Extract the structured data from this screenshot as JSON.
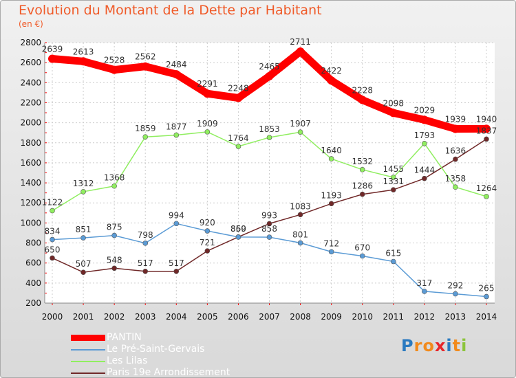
{
  "title": "Evolution du Montant de la Dette par Habitant",
  "subtitle": "(en €)",
  "logo": {
    "text": "Proxiti",
    "colors": [
      "#2a7ac0",
      "#f28a1b",
      "#f28a1b",
      "#e8262a",
      "#2a7ac0",
      "#f28a1b",
      "#8cc43c"
    ]
  },
  "chart_data": {
    "type": "line",
    "title": "Evolution du Montant de la Dette par Habitant",
    "subtitle": "(en €)",
    "x": [
      "2000",
      "2001",
      "2002",
      "2003",
      "2004",
      "2005",
      "2006",
      "2007",
      "2008",
      "2009",
      "2010",
      "2011",
      "2012",
      "2013",
      "2014"
    ],
    "ylim": [
      200,
      2800
    ],
    "yticks": [
      200,
      400,
      600,
      800,
      1000,
      1200,
      1400,
      1600,
      1800,
      2000,
      2200,
      2400,
      2600,
      2800
    ],
    "grid": true,
    "legend_position": "bottom-left",
    "series": [
      {
        "name": "PANTIN",
        "color": "#ff0000",
        "values": [
          2639,
          2613,
          2528,
          2562,
          2484,
          2291,
          2248,
          2465,
          2711,
          2422,
          2228,
          2098,
          2029,
          1939,
          1940
        ]
      },
      {
        "name": "Le Pré-Saint-Gervais",
        "color": "#5b9bd5",
        "values": [
          834,
          851,
          875,
          798,
          994,
          920,
          859,
          858,
          801,
          712,
          670,
          615,
          317,
          292,
          265
        ]
      },
      {
        "name": "Les Lilas",
        "color": "#90ee60",
        "values": [
          1122,
          1312,
          1368,
          1859,
          1877,
          1909,
          1764,
          1853,
          1907,
          1640,
          1532,
          1455,
          1793,
          1358,
          1264
        ]
      },
      {
        "name": "Paris 19e  Arrondissement",
        "color": "#702828",
        "values": [
          650,
          507,
          548,
          517,
          517,
          721,
          860,
          993,
          1083,
          1193,
          1286,
          1331,
          1444,
          1636,
          1837
        ]
      }
    ],
    "data_labels": [
      [
        "2639",
        "2613",
        "2528",
        "2562",
        "2484",
        "2291",
        "2248",
        "2465",
        "2711",
        "2422",
        "2228",
        "2098",
        "2029",
        "1939",
        "1940"
      ],
      [
        "834",
        "851",
        "875",
        "798",
        "994",
        "920",
        "859",
        "858",
        "801",
        "712",
        "670",
        "615",
        "317",
        "292",
        "265"
      ],
      [
        "1122",
        "1312",
        "1368",
        "1859",
        "1877",
        "1909",
        "1764",
        "1853",
        "1907",
        "1640",
        "1532",
        "1455",
        "1793",
        "1358",
        "1264"
      ],
      [
        "650",
        "507",
        "548",
        "517",
        "517",
        "721",
        "860",
        "993",
        "1083",
        "1193",
        "1286",
        "1331",
        "1444",
        "1636",
        "1837"
      ]
    ]
  }
}
